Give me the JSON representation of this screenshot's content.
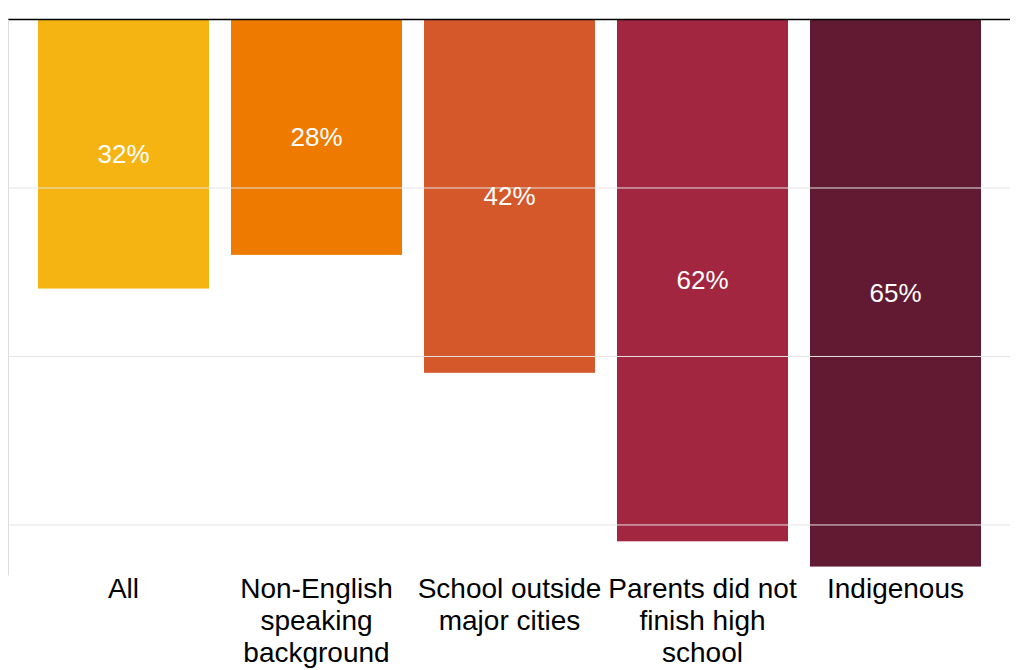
{
  "chart_data": {
    "type": "bar",
    "categories": [
      "All",
      "Non-English speaking background",
      "School outside major cities",
      "Parents did not finish high school",
      "Indigenous"
    ],
    "values": [
      32,
      28,
      42,
      62,
      65
    ],
    "value_labels": [
      "32%",
      "28%",
      "42%",
      "62%",
      "65%"
    ],
    "colors": [
      "#f5b412",
      "#ee7a00",
      "#d5582a",
      "#a22640",
      "#621a33"
    ],
    "ylim": [
      0,
      66
    ],
    "yticks": [
      0,
      20,
      40,
      60
    ],
    "grid": true,
    "data_labels": true,
    "tick_labels": "x"
  }
}
